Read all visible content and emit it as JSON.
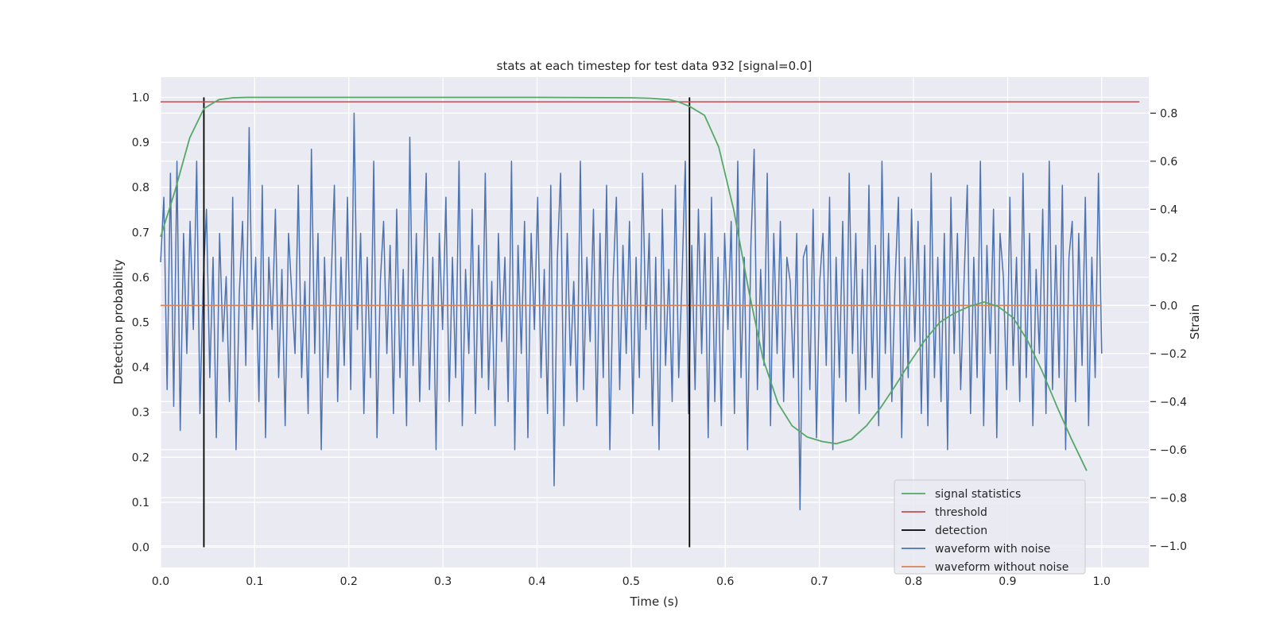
{
  "chart_data": {
    "type": "line",
    "title": "stats at each timestep for test data 932 [signal=0.0]",
    "xlabel": "Time (s)",
    "ylabel_left": "Detection probability",
    "ylabel_right": "Strain",
    "xlim": [
      0.0,
      1.05
    ],
    "ylim_left": [
      -0.045,
      1.045
    ],
    "ylim_right": [
      -1.09,
      0.95
    ],
    "x_ticks": [
      "0.0",
      "0.1",
      "0.2",
      "0.3",
      "0.4",
      "0.5",
      "0.6",
      "0.7",
      "0.8",
      "0.9",
      "1.0"
    ],
    "y_ticks_left": [
      "0.0",
      "0.1",
      "0.2",
      "0.3",
      "0.4",
      "0.5",
      "0.6",
      "0.7",
      "0.8",
      "0.9",
      "1.0"
    ],
    "y_ticks_right": [
      "−1.0",
      "−0.8",
      "−0.6",
      "−0.4",
      "−0.2",
      "0.0",
      "0.2",
      "0.4",
      "0.6",
      "0.8"
    ],
    "grid": true,
    "legend_position": "lower-right",
    "series": [
      {
        "name": "signal statistics",
        "axis": "left",
        "color": "#55a868",
        "x": [
          0.0,
          0.015,
          0.031,
          0.046,
          0.062,
          0.077,
          0.092,
          0.2,
          0.3,
          0.4,
          0.5,
          0.52,
          0.54,
          0.55,
          0.562,
          0.578,
          0.593,
          0.609,
          0.625,
          0.64,
          0.656,
          0.671,
          0.687,
          0.703,
          0.718,
          0.734,
          0.75,
          0.765,
          0.781,
          0.796,
          0.812,
          0.828,
          0.843,
          0.859,
          0.875,
          0.89,
          0.906,
          0.921,
          0.937,
          0.953,
          0.968,
          0.984
        ],
        "values": [
          0.69,
          0.79,
          0.91,
          0.975,
          0.995,
          0.999,
          1.0,
          1.0,
          1.0,
          1.0,
          0.999,
          0.998,
          0.995,
          0.99,
          0.98,
          0.96,
          0.89,
          0.75,
          0.57,
          0.42,
          0.32,
          0.27,
          0.245,
          0.235,
          0.23,
          0.24,
          0.27,
          0.31,
          0.36,
          0.41,
          0.46,
          0.5,
          0.52,
          0.535,
          0.545,
          0.535,
          0.51,
          0.46,
          0.39,
          0.31,
          0.24,
          0.17
        ]
      },
      {
        "name": "threshold",
        "axis": "left",
        "color": "#c44e52",
        "x": [
          0.0,
          1.04
        ],
        "values": [
          0.99,
          0.99
        ]
      },
      {
        "name": "detection",
        "axis": "left",
        "color": "#000000",
        "x_positions": [
          0.046,
          0.562
        ],
        "range": [
          0.0,
          1.0
        ]
      },
      {
        "name": "waveform with noise",
        "axis": "right",
        "color": "#4c72b0",
        "x_range": [
          0.0,
          1.0
        ],
        "values": [
          0.18,
          0.45,
          -0.35,
          0.55,
          -0.42,
          0.6,
          -0.52,
          0.3,
          -0.2,
          0.35,
          -0.1,
          0.6,
          -0.45,
          0.1,
          0.4,
          -0.3,
          0.2,
          -0.55,
          0.3,
          -0.15,
          0.12,
          -0.4,
          0.45,
          -0.6,
          0.05,
          0.35,
          -0.25,
          0.74,
          -0.1,
          0.2,
          -0.4,
          0.5,
          -0.55,
          0.2,
          -0.1,
          0.4,
          -0.3,
          0.15,
          -0.5,
          0.3,
          0.05,
          -0.2,
          0.5,
          -0.3,
          0.1,
          -0.45,
          0.65,
          -0.2,
          0.3,
          -0.6,
          0.2,
          -0.3,
          0.1,
          0.5,
          -0.4,
          0.2,
          -0.25,
          0.45,
          -0.35,
          0.8,
          -0.1,
          0.3,
          -0.45,
          0.2,
          -0.3,
          0.6,
          -0.55,
          0.1,
          0.35,
          -0.2,
          0.25,
          -0.45,
          0.4,
          -0.3,
          0.15,
          -0.5,
          0.7,
          -0.25,
          0.3,
          -0.4,
          0.1,
          0.55,
          -0.35,
          0.2,
          -0.6,
          0.3,
          -0.1,
          0.45,
          -0.4,
          0.2,
          -0.3,
          0.6,
          -0.5,
          0.15,
          -0.2,
          0.4,
          -0.45,
          0.25,
          -0.3,
          0.55,
          -0.35,
          0.1,
          -0.5,
          0.3,
          -0.15,
          0.2,
          -0.4,
          0.6,
          -0.6,
          0.25,
          -0.2,
          0.35,
          -0.55,
          0.3,
          -0.1,
          0.45,
          -0.3,
          0.15,
          -0.45,
          0.5,
          -0.75,
          0.2,
          0.55,
          -0.5,
          0.3,
          -0.25,
          0.1,
          -0.4,
          0.6,
          -0.35,
          0.2,
          -0.15,
          0.4,
          -0.5,
          0.3,
          -0.3,
          0.5,
          -0.6,
          0.1,
          0.45,
          -0.35,
          0.25,
          -0.2,
          0.35,
          -0.45,
          0.2,
          -0.3,
          0.55,
          -0.1,
          0.3,
          -0.5,
          0.2,
          -0.6,
          0.4,
          -0.25,
          0.15,
          -0.4,
          0.5,
          -0.3,
          0.1,
          0.6,
          -0.45,
          0.25,
          -0.35,
          0.4,
          -0.2,
          0.3,
          -0.55,
          0.45,
          -0.4,
          0.2,
          -0.5,
          0.3,
          -0.1,
          0.35,
          -0.45,
          0.6,
          -0.3,
          0.2,
          -0.6,
          0.25,
          0.65,
          -0.35,
          0.15,
          -0.25,
          0.55,
          -0.5,
          0.3,
          -0.2,
          0.35,
          -0.4,
          0.2,
          0.1,
          -0.3,
          0.3,
          -0.85,
          0.2,
          0.25,
          -0.35,
          0.4,
          -0.55,
          0.1,
          0.3,
          -0.25,
          0.45,
          -0.6,
          0.2,
          -0.3,
          0.35,
          -0.4,
          0.55,
          -0.2,
          0.3,
          -0.45,
          0.15,
          -0.35,
          0.5,
          -0.3,
          0.25,
          -0.5,
          0.6,
          -0.2,
          0.3,
          -0.4,
          0.1,
          0.45,
          -0.55,
          0.2,
          -0.3,
          0.4,
          -0.15,
          0.35,
          -0.45,
          0.25,
          -0.5,
          0.55,
          -0.3,
          0.2,
          -0.4,
          0.3,
          -0.6,
          0.45,
          -0.2,
          0.3,
          -0.35,
          0.1,
          0.5,
          -0.45,
          0.2,
          -0.3,
          0.6,
          -0.5,
          0.25,
          -0.2,
          0.4,
          -0.55,
          0.3,
          0.12,
          -0.35,
          0.45,
          -0.25,
          0.2,
          -0.4,
          0.55,
          -0.3,
          0.3,
          -0.5,
          0.15,
          -0.2,
          0.4,
          -0.45,
          0.6,
          -0.35,
          0.25,
          -0.3,
          0.5,
          -0.6,
          0.2,
          0.35,
          -0.4,
          0.3,
          -0.25,
          0.45,
          -0.5,
          0.2,
          -0.3,
          0.55,
          -0.2
        ]
      },
      {
        "name": "waveform without noise",
        "axis": "right",
        "color": "#dd8452",
        "x": [
          0.0,
          1.0
        ],
        "values": [
          0.0,
          0.0
        ]
      }
    ]
  }
}
